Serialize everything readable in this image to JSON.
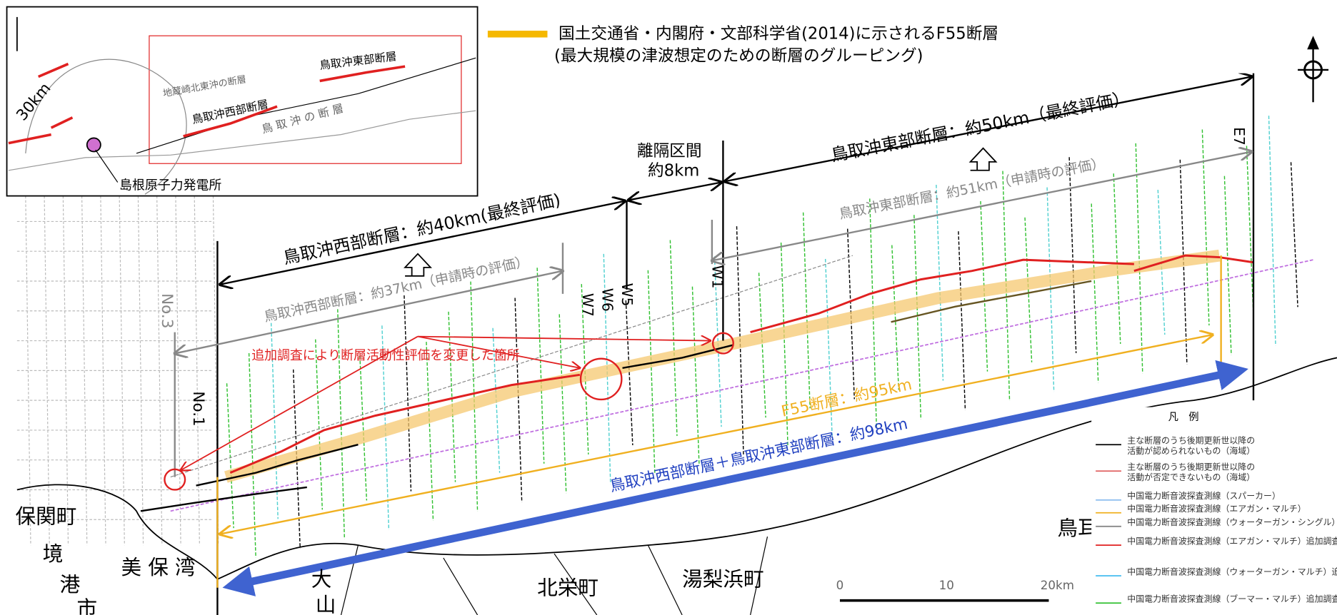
{
  "legend_top": {
    "line1": "国土交通省・内閣府・文部科学省(2014)に示されるF55断層",
    "line2": "(最大規模の津波想定のための断層のグルーピング)"
  },
  "inset": {
    "radius_label": "30km",
    "east_fault": "鳥取沖東部断層",
    "west_fault": "鳥取沖西部断層",
    "jizozaki": "地蔵崎北東沖の断層",
    "tottori_oki": "鳥 取 沖 の 断 層",
    "plant": "島根原子力発電所"
  },
  "annotations": {
    "east_final": "鳥取沖東部断層：約50km（最終評価）",
    "gap_title": "離隔区間",
    "gap_length": "約8km",
    "west_final": "鳥取沖西部断層：約40km(最終評価)",
    "east_application": "鳥取沖東部断層：約51km（申請時の評価）",
    "west_application": "鳥取沖西部断層：約37km（申請時の評価）",
    "changed": "追加調査により断層活動性評価を変更した箇所",
    "f55": "F55断層：約95km",
    "combined": "鳥取沖西部断層＋鳥取沖東部断層：約98km"
  },
  "survey_lines": [
    "No.3",
    "No.1",
    "W7",
    "W6",
    "W5",
    "W1",
    "E7"
  ],
  "places": [
    "保関町",
    "境",
    "港",
    "市",
    "美 保 湾",
    "大",
    "山",
    "北栄町",
    "湯梨浜町",
    "鳥耳"
  ],
  "scale": {
    "labels": [
      "0",
      "10",
      "20km"
    ]
  },
  "legend": {
    "title": "凡　例",
    "items": [
      "主な断層のうち後期更新世以降の",
      "活動が認められないもの（海域）",
      "主な断層のうち後期更新世以降の",
      "活動が否定できないもの（海域）",
      "中国電力断音波探査測線（スパーカー）",
      "中国電力断音波探査測線（エアガン・マルチ）",
      "中国電力断音波探査測線（ウォーターガン・シングル）",
      "中国電力断音波探査測線（エアガン・マルチ）追加調査",
      "中国電力断音波探査測線（ウォーターガン・マルチ）追加調査",
      "中国電力断音波探査測線（ブーマー・マルチ）追加調査"
    ]
  }
}
